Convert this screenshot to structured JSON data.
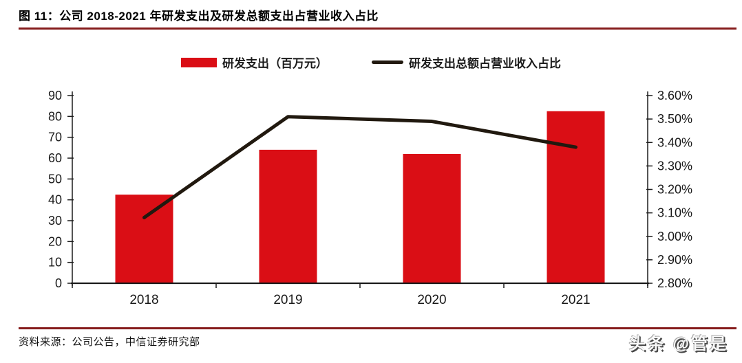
{
  "title": "图 11：公司 2018-2021 年研发支出及研发总额支出占营业收入占比",
  "legend": {
    "bar_label": "研发支出（百万元）",
    "line_label": "研发支出总额占营业收入占比"
  },
  "footer": {
    "source": "资料来源：公司公告，中信证券研究部",
    "watermark": "头条 @管是"
  },
  "colors": {
    "bar_red": "#DA0E15",
    "line_black": "#21190F",
    "accent_rule": "#851B1B",
    "axis": "#1A1A1A"
  },
  "chart_data": {
    "type": "bar",
    "subtype": "combo bar + line, dual y-axes",
    "title": "公司 2018-2021 年研发支出及研发总额支出占营业收入占比",
    "categories": [
      "2018",
      "2019",
      "2020",
      "2021"
    ],
    "series": [
      {
        "name": "研发支出（百万元）",
        "type": "bar",
        "axis": "left",
        "values": [
          42.5,
          64,
          62,
          82.5
        ]
      },
      {
        "name": "研发支出总额占营业收入占比",
        "type": "line",
        "axis": "right",
        "unit": "%",
        "values": [
          3.08,
          3.51,
          3.49,
          3.38
        ]
      }
    ],
    "left_axis": {
      "min": 0,
      "max": 90,
      "step": 10,
      "tick_labels": [
        "90",
        "80",
        "70",
        "60",
        "50",
        "40",
        "30",
        "20",
        "10",
        "0"
      ]
    },
    "right_axis": {
      "min": 2.8,
      "max": 3.6,
      "step": 0.1,
      "tick_labels": [
        "3.60%",
        "3.50%",
        "3.40%",
        "3.30%",
        "3.20%",
        "3.10%",
        "3.00%",
        "2.90%",
        "2.80%"
      ]
    },
    "grid": false,
    "legend_position": "top"
  }
}
